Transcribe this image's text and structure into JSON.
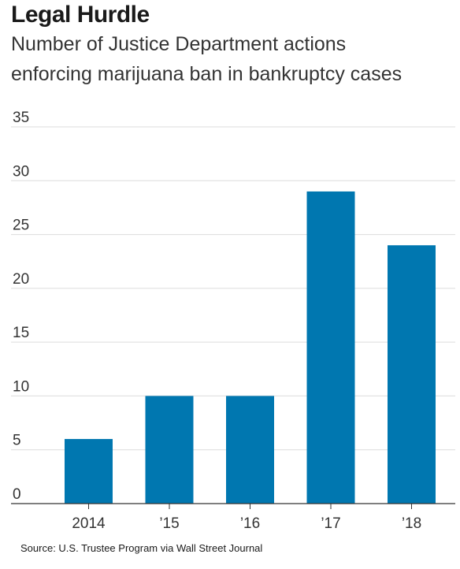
{
  "chart_data": {
    "type": "bar",
    "title": "Legal Hurdle",
    "subtitle_lines": [
      "Number of Justice Department actions",
      "enforcing marijuana ban in bankruptcy cases"
    ],
    "categories": [
      "2014",
      "’15",
      "’16",
      "’17",
      "’18"
    ],
    "values": [
      6,
      10,
      10,
      29,
      24
    ],
    "ylim": [
      0,
      35
    ],
    "yticks": [
      0,
      5,
      10,
      15,
      20,
      25,
      30,
      35
    ],
    "grid": true,
    "bar_color": "#0077b0",
    "grid_color": "#dcdcdc",
    "source": "Source: U.S. Trustee Program via Wall Street Journal"
  }
}
